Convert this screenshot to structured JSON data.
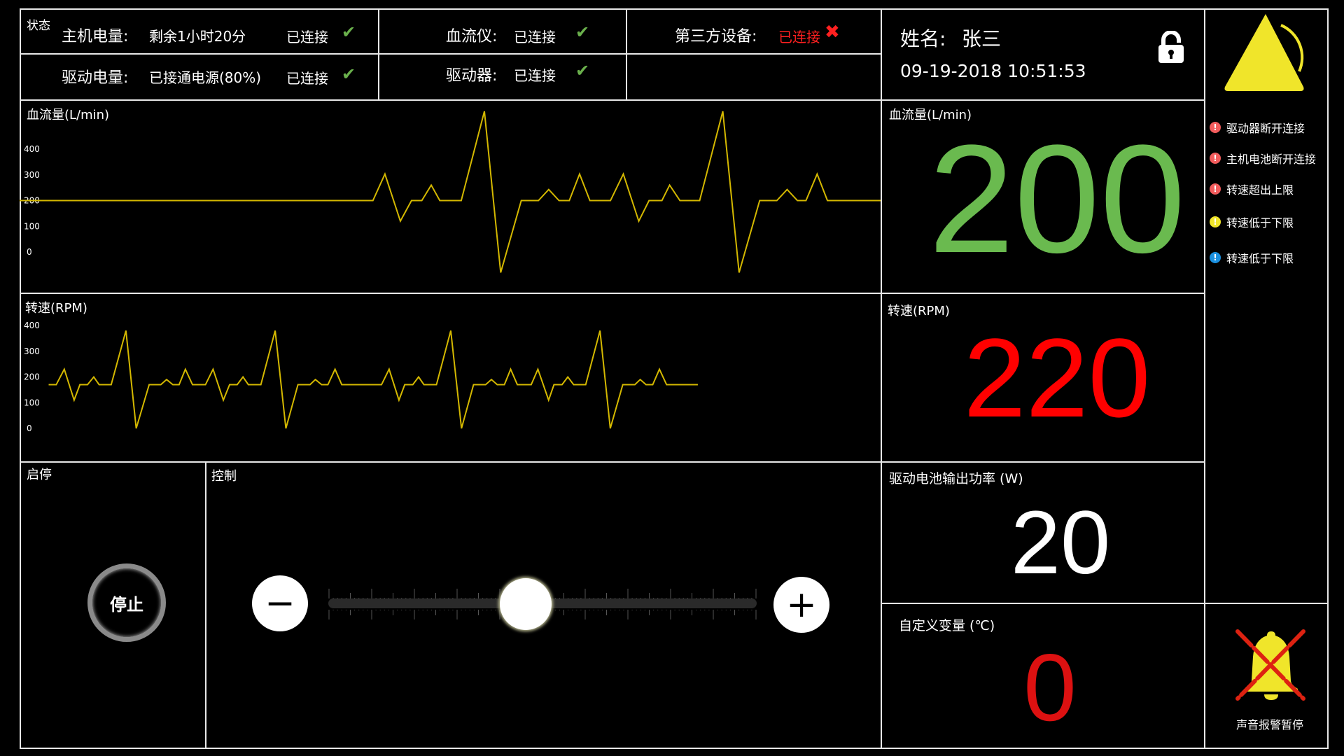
{
  "status": {
    "title": "状态",
    "host_battery_label": "主机电量:",
    "host_battery_value": "剩余1小时20分",
    "host_conn": "已连接",
    "drive_battery_label": "驱动电量:",
    "drive_battery_value": "已接通电源(80%)",
    "drive_conn": "已连接",
    "flowmeter_label": "血流仪:",
    "flowmeter_value": "已连接",
    "driver_label": "驱动器:",
    "driver_value": "已连接",
    "third_label": "第三方设备:",
    "third_value": "已连接",
    "check_icon": "check-icon",
    "cross_icon": "cross-icon"
  },
  "patient": {
    "name_label": "姓名:",
    "name": "张三",
    "datetime": "09-19-2018 10:51:53",
    "lock_icon": "unlock-icon"
  },
  "flow_panel": {
    "title": "血流量(L/min)",
    "value": "200",
    "value_color": "#6aba4f"
  },
  "rpm_panel": {
    "title": "转速(RPM)",
    "value": "220",
    "value_color": "#ff0000"
  },
  "power_panel": {
    "title": "驱动电池输出功率 (W)",
    "value": "20",
    "value_color": "#ffffff"
  },
  "custom_panel": {
    "title": "自定义变量 (℃)",
    "value": "0",
    "value_color": "#dd1111"
  },
  "startstop": {
    "title": "启停",
    "button": "停止"
  },
  "control": {
    "title": "控制",
    "minus": "−",
    "plus": "+",
    "slider_fraction": 0.46
  },
  "alerts": [
    {
      "text": "驱动器断开连接",
      "color": "#f25c5c"
    },
    {
      "text": "主机电池断开连接",
      "color": "#f25c5c"
    },
    {
      "text": "转速超出上限",
      "color": "#f25c5c"
    },
    {
      "text": "转速低于下限",
      "color": "#f0e52a"
    },
    {
      "text": "转速低于下限",
      "color": "#1a90e0"
    }
  ],
  "sound": {
    "label": "声音报警暂停"
  },
  "colors": {
    "line": "#d4b800",
    "warning": "#f0e52a",
    "border": "#e8e8e8"
  },
  "chart_data": [
    {
      "type": "line",
      "title": "血流量(L/min)",
      "yticks": [
        "400",
        "300",
        "200",
        "100",
        "0"
      ],
      "ylim": [
        0,
        400
      ],
      "xlim": [
        0,
        1004
      ],
      "grid": false,
      "points": [
        [
          0,
          200
        ],
        [
          412,
          200
        ],
        [
          426,
          303
        ],
        [
          444,
          120
        ],
        [
          457,
          200
        ],
        [
          469,
          200
        ],
        [
          480,
          260
        ],
        [
          490,
          200
        ],
        [
          515,
          200
        ],
        [
          542,
          547
        ],
        [
          561,
          -80
        ],
        [
          585,
          200
        ],
        [
          605,
          200
        ],
        [
          617,
          243
        ],
        [
          629,
          200
        ],
        [
          641,
          200
        ],
        [
          653,
          303
        ],
        [
          665,
          200
        ],
        [
          689,
          200
        ],
        [
          704,
          303
        ],
        [
          722,
          120
        ],
        [
          734,
          200
        ],
        [
          749,
          200
        ],
        [
          758,
          260
        ],
        [
          770,
          200
        ],
        [
          793,
          200
        ],
        [
          820,
          547
        ],
        [
          839,
          -80
        ],
        [
          863,
          200
        ],
        [
          883,
          200
        ],
        [
          895,
          243
        ],
        [
          907,
          200
        ],
        [
          917,
          200
        ],
        [
          930,
          303
        ],
        [
          942,
          200
        ],
        [
          1004,
          200
        ]
      ]
    },
    {
      "type": "line",
      "title": "转速(RPM)",
      "yticks": [
        "400",
        "300",
        "200",
        "100",
        "0"
      ],
      "ylim": [
        0,
        400
      ],
      "xlim": [
        0,
        1927
      ],
      "grid": false,
      "points": [
        [
          65,
          170
        ],
        [
          82,
          170
        ],
        [
          100,
          230
        ],
        [
          122,
          110
        ],
        [
          135,
          170
        ],
        [
          152,
          170
        ],
        [
          166,
          200
        ],
        [
          178,
          170
        ],
        [
          205,
          170
        ],
        [
          238,
          380
        ],
        [
          261,
          0
        ],
        [
          290,
          170
        ],
        [
          316,
          170
        ],
        [
          329,
          190
        ],
        [
          343,
          170
        ],
        [
          357,
          170
        ],
        [
          371,
          230
        ],
        [
          387,
          170
        ],
        [
          416,
          170
        ],
        [
          433,
          230
        ],
        [
          456,
          110
        ],
        [
          470,
          170
        ],
        [
          487,
          170
        ],
        [
          500,
          200
        ],
        [
          512,
          170
        ],
        [
          540,
          170
        ],
        [
          572,
          380
        ],
        [
          596,
          0
        ],
        [
          623,
          170
        ],
        [
          650,
          170
        ],
        [
          662,
          190
        ],
        [
          676,
          170
        ],
        [
          690,
          170
        ],
        [
          706,
          230
        ],
        [
          721,
          170
        ],
        [
          810,
          170
        ],
        [
          827,
          230
        ],
        [
          849,
          110
        ],
        [
          862,
          170
        ],
        [
          880,
          170
        ],
        [
          893,
          200
        ],
        [
          905,
          170
        ],
        [
          933,
          170
        ],
        [
          965,
          380
        ],
        [
          989,
          0
        ],
        [
          1016,
          170
        ],
        [
          1043,
          170
        ],
        [
          1056,
          190
        ],
        [
          1069,
          170
        ],
        [
          1085,
          170
        ],
        [
          1099,
          230
        ],
        [
          1114,
          170
        ],
        [
          1145,
          170
        ],
        [
          1160,
          230
        ],
        [
          1184,
          110
        ],
        [
          1196,
          170
        ],
        [
          1214,
          170
        ],
        [
          1227,
          200
        ],
        [
          1240,
          170
        ],
        [
          1267,
          170
        ],
        [
          1299,
          380
        ],
        [
          1322,
          0
        ],
        [
          1350,
          170
        ],
        [
          1377,
          170
        ],
        [
          1389,
          190
        ],
        [
          1402,
          170
        ],
        [
          1417,
          170
        ],
        [
          1432,
          230
        ],
        [
          1448,
          170
        ],
        [
          1518,
          170
        ]
      ]
    }
  ]
}
